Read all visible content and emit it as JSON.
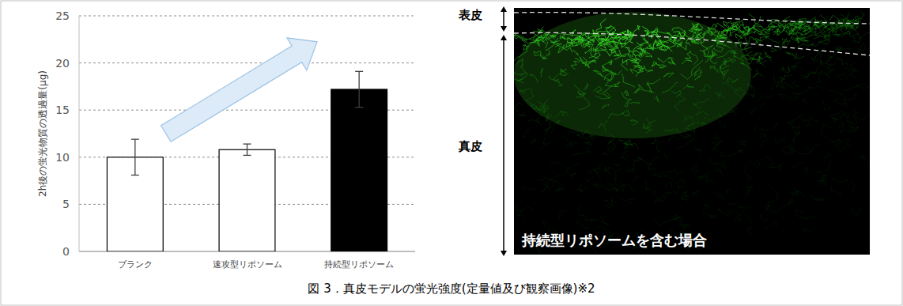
{
  "chart_data": {
    "type": "bar",
    "y_label": "2h後の蛍光物質の透過量(μg)",
    "categories": [
      "ブランク",
      "速攻型リポソーム",
      "持続型リポソーム"
    ],
    "values": [
      10.0,
      10.8,
      17.2
    ],
    "errors": [
      1.9,
      0.6,
      1.9
    ],
    "colors": [
      "#ffffff",
      "#ffffff",
      "#000000"
    ],
    "ylim": [
      0,
      25
    ],
    "yticks": [
      0,
      5,
      10,
      15,
      20,
      25
    ],
    "grid": true
  },
  "image_panel": {
    "layer_labels": [
      "表皮",
      "真皮"
    ],
    "overlay_text": "持続型リポソームを含む場合"
  },
  "caption": "図 3．真皮モデルの蛍光強度(定量値及び観察画像)※2"
}
